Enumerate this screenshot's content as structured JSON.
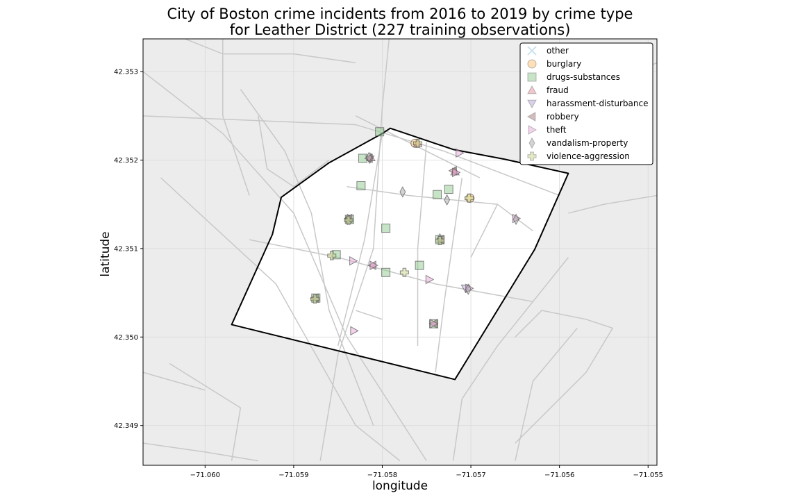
{
  "chart_data": {
    "type": "scatter",
    "title_line1": "City of Boston crime incidents from 2016 to 2019 by crime type",
    "title_line2": "for Leather District (227 training observations)",
    "xlabel": "longitude",
    "ylabel": "latitude",
    "xlim": [
      -71.0607,
      -71.0549
    ],
    "ylim": [
      42.34855,
      42.35337
    ],
    "xticks": [
      -71.06,
      -71.059,
      -71.058,
      -71.057,
      -71.056,
      -71.055
    ],
    "xtick_labels": [
      "−71.060",
      "−71.059",
      "−71.058",
      "−71.057",
      "−71.056",
      "−71.055"
    ],
    "yticks": [
      42.349,
      42.35,
      42.351,
      42.352,
      42.353
    ],
    "ytick_labels": [
      "42.349",
      "42.350",
      "42.351",
      "42.352",
      "42.353"
    ],
    "grid": true,
    "legend_position": "top-right",
    "district_boundary": [
      [
        -71.05791,
        42.35236
      ],
      [
        -71.0572,
        42.35212
      ],
      [
        -71.05662,
        42.35201
      ],
      [
        -71.0559,
        42.35185
      ],
      [
        -71.05628,
        42.35099
      ],
      [
        -71.05718,
        42.34952
      ],
      [
        -71.0597,
        42.35014
      ],
      [
        -71.05924,
        42.35116
      ],
      [
        -71.05914,
        42.35158
      ],
      [
        -71.0586,
        42.35197
      ],
      [
        -71.058,
        42.3523
      ]
    ],
    "streets": [
      [
        [
          -71.0607,
          42.353
        ],
        [
          -71.0598,
          42.3523
        ],
        [
          -71.059,
          42.3514
        ],
        [
          -71.0584,
          42.35
        ],
        [
          -71.0575,
          42.3486
        ]
      ],
      [
        [
          -71.0605,
          42.3518
        ],
        [
          -71.0592,
          42.3506
        ],
        [
          -71.0583,
          42.349
        ],
        [
          -71.0578,
          42.3486
        ]
      ],
      [
        [
          -71.0607,
          42.3525
        ],
        [
          -71.0583,
          42.3524
        ],
        [
          -71.0573,
          42.3521
        ],
        [
          -71.056,
          42.3516
        ]
      ],
      [
        [
          -71.0596,
          42.3528
        ],
        [
          -71.0591,
          42.3521
        ],
        [
          -71.0588,
          42.3514
        ],
        [
          -71.0586,
          42.3503
        ],
        [
          -71.0581,
          42.349
        ]
      ],
      [
        [
          -71.0598,
          42.3536
        ],
        [
          -71.0598,
          42.3525
        ],
        [
          -71.0595,
          42.3516
        ]
      ],
      [
        [
          -71.0594,
          42.3525
        ],
        [
          -71.0593,
          42.3519
        ],
        [
          -71.059,
          42.3517
        ],
        [
          -71.0586,
          42.352
        ]
      ],
      [
        [
          -71.0603,
          42.3534
        ],
        [
          -71.0598,
          42.3532
        ],
        [
          -71.059,
          42.3532
        ],
        [
          -71.0583,
          42.3531
        ]
      ],
      [
        [
          -71.0579,
          42.3536
        ],
        [
          -71.058,
          42.3526
        ],
        [
          -71.0581,
          42.351
        ],
        [
          -71.0585,
          42.3498
        ],
        [
          -71.0587,
          42.3486
        ]
      ],
      [
        [
          -71.0583,
          42.3525
        ],
        [
          -71.0577,
          42.3522
        ],
        [
          -71.0569,
          42.3518
        ]
      ],
      [
        [
          -71.0584,
          42.3517
        ],
        [
          -71.0577,
          42.3516
        ],
        [
          -71.0567,
          42.3515
        ],
        [
          -71.0563,
          42.3512
        ]
      ],
      [
        [
          -71.0595,
          42.3511
        ],
        [
          -71.0585,
          42.3509
        ],
        [
          -71.0574,
          42.3506
        ],
        [
          -71.0563,
          42.3504
        ]
      ],
      [
        [
          -71.058,
          42.3523
        ],
        [
          -71.0582,
          42.3511
        ],
        [
          -71.0585,
          42.3499
        ]
      ],
      [
        [
          -71.0575,
          42.3522
        ],
        [
          -71.0576,
          42.351
        ],
        [
          -71.0576,
          42.3499
        ]
      ],
      [
        [
          -71.0571,
          42.3518
        ],
        [
          -71.0573,
          42.3504
        ],
        [
          -71.0574,
          42.3496
        ]
      ],
      [
        [
          -71.0567,
          42.3515
        ],
        [
          -71.057,
          42.3509
        ]
      ],
      [
        [
          -71.0583,
          42.3503
        ],
        [
          -71.058,
          42.3502
        ]
      ],
      [
        [
          -71.0562,
          42.3525
        ],
        [
          -71.0558,
          42.3527
        ],
        [
          -71.0551,
          42.353
        ]
      ],
      [
        [
          -71.0559,
          42.3514
        ],
        [
          -71.0555,
          42.3515
        ],
        [
          -71.0549,
          42.3516
        ]
      ],
      [
        [
          -71.0554,
          42.3529
        ],
        [
          -71.0549,
          42.3531
        ]
      ],
      [
        [
          -71.0607,
          42.3488
        ],
        [
          -71.06,
          42.3487
        ],
        [
          -71.0594,
          42.3486
        ]
      ],
      [
        [
          -71.0607,
          42.3496
        ],
        [
          -71.06,
          42.3494
        ]
      ],
      [
        [
          -71.0565,
          42.35
        ],
        [
          -71.0562,
          42.3503
        ],
        [
          -71.0557,
          42.3502
        ],
        [
          -71.0554,
          42.3501
        ],
        [
          -71.0557,
          42.3496
        ],
        [
          -71.0565,
          42.3488
        ]
      ],
      [
        [
          -71.0572,
          42.3486
        ],
        [
          -71.0571,
          42.3493
        ],
        [
          -71.0567,
          42.3499
        ],
        [
          -71.0559,
          42.3509
        ]
      ],
      [
        [
          -71.0565,
          42.3486
        ],
        [
          -71.0563,
          42.3495
        ],
        [
          -71.0558,
          42.3501
        ]
      ],
      [
        [
          -71.0597,
          42.3486
        ],
        [
          -71.0596,
          42.3492
        ],
        [
          -71.0604,
          42.3497
        ]
      ]
    ],
    "legend": [
      {
        "name": "other",
        "marker": "x",
        "color": "#a6cee3"
      },
      {
        "name": "burglary",
        "marker": "o",
        "color": "#fdbf6f"
      },
      {
        "name": "drugs-substances",
        "marker": "s",
        "color": "#8fc98f"
      },
      {
        "name": "fraud",
        "marker": "^",
        "color": "#e8909c"
      },
      {
        "name": "harassment-disturbance",
        "marker": "v",
        "color": "#b9a3d8"
      },
      {
        "name": "robbery",
        "marker": "<",
        "color": "#a8797e"
      },
      {
        "name": "theft",
        "marker": ">",
        "color": "#e8a6d9"
      },
      {
        "name": "vandalism-property",
        "marker": "d",
        "color": "#a9a9a9"
      },
      {
        "name": "violence-aggression",
        "marker": "P",
        "color": "#c7d68a"
      }
    ],
    "series": [
      {
        "name": "other",
        "points": []
      },
      {
        "name": "burglary",
        "points": [
          [
            -71.05763,
            42.35219
          ],
          [
            -71.05701,
            42.35157
          ]
        ]
      },
      {
        "name": "drugs-substances",
        "points": [
          [
            -71.05803,
            42.35232
          ],
          [
            -71.05822,
            42.35202
          ],
          [
            -71.05824,
            42.35171
          ],
          [
            -71.05796,
            42.35123
          ],
          [
            -71.05758,
            42.35081
          ],
          [
            -71.05796,
            42.35073
          ],
          [
            -71.05837,
            42.35133
          ],
          [
            -71.05738,
            42.35161
          ],
          [
            -71.05725,
            42.35167
          ],
          [
            -71.05735,
            42.3511
          ],
          [
            -71.05875,
            42.35044
          ],
          [
            -71.05852,
            42.35093
          ],
          [
            -71.05742,
            42.35015
          ]
        ]
      },
      {
        "name": "fraud",
        "points": [
          [
            -71.05813,
            42.35203
          ],
          [
            -71.05718,
            42.35187
          ],
          [
            -71.0576,
            42.35219
          ]
        ]
      },
      {
        "name": "harassment-disturbance",
        "points": [
          [
            -71.05814,
            42.35201
          ],
          [
            -71.05706,
            42.35055
          ]
        ]
      },
      {
        "name": "robbery",
        "points": [
          [
            -71.05815,
            42.35202
          ],
          [
            -71.05838,
            42.35134
          ],
          [
            -71.05734,
            42.3511
          ],
          [
            -71.05876,
            42.35044
          ],
          [
            -71.0572,
            42.35188
          ],
          [
            -71.05811,
            42.35081
          ],
          [
            -71.05742,
            42.35015
          ]
        ]
      },
      {
        "name": "theft",
        "points": [
          [
            -71.05713,
            42.35208
          ],
          [
            -71.05717,
            42.35186
          ],
          [
            -71.05833,
            42.35086
          ],
          [
            -71.0581,
            42.35081
          ],
          [
            -71.05742,
            42.35015
          ],
          [
            -71.05747,
            42.35065
          ],
          [
            -71.05832,
            42.35007
          ],
          [
            -71.05702,
            42.35055
          ],
          [
            -71.05649,
            42.35134
          ]
        ]
      },
      {
        "name": "vandalism-property",
        "points": [
          [
            -71.05815,
            42.35203
          ],
          [
            -71.05777,
            42.35164
          ],
          [
            -71.05727,
            42.35155
          ],
          [
            -71.05703,
            42.35054
          ],
          [
            -71.05649,
            42.35133
          ],
          [
            -71.05839,
            42.35133
          ],
          [
            -71.05735,
            42.35111
          ]
        ]
      },
      {
        "name": "violence-aggression",
        "points": [
          [
            -71.05838,
            42.35132
          ],
          [
            -71.05735,
            42.35109
          ],
          [
            -71.05857,
            42.35092
          ],
          [
            -71.05775,
            42.35073
          ],
          [
            -71.05876,
            42.35043
          ],
          [
            -71.0576,
            42.35219
          ],
          [
            -71.05702,
            42.35157
          ]
        ]
      }
    ]
  }
}
